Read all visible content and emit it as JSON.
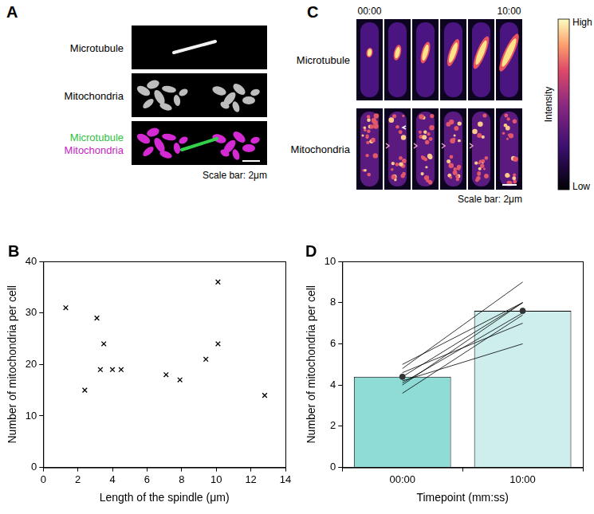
{
  "panels": {
    "A": {
      "label": "A",
      "rows": [
        {
          "labels": [
            "Microtubule"
          ]
        },
        {
          "labels": [
            "Mitochondria"
          ]
        },
        {
          "labels": [
            "Microtubule",
            "Mitochondria"
          ]
        }
      ],
      "scale_bar": "Scale bar: 2μm"
    },
    "C": {
      "label": "C",
      "timepoints": [
        "00:00",
        "10:00"
      ],
      "rows": [
        "Microtubule",
        "Mitochondria"
      ],
      "colorbar": {
        "title": "Intensity",
        "high": "High",
        "low": "Low"
      },
      "scale_bar": "Scale bar: 2μm"
    }
  },
  "chart_data": [
    {
      "panel": "B",
      "type": "scatter",
      "x": [
        1.3,
        2.4,
        3.1,
        3.3,
        3.5,
        4.0,
        4.5,
        7.1,
        7.9,
        9.4,
        10.1,
        10.1,
        12.8
      ],
      "values": [
        31,
        15,
        29,
        19,
        24,
        19,
        19,
        18,
        17,
        21,
        36,
        24,
        14
      ],
      "marker": "x",
      "color": "#000000",
      "xlabel": "Length of the spindle (μm)",
      "ylabel": "Number of mitochondria per cell",
      "xlim": [
        0,
        14
      ],
      "xticks": [
        0,
        2,
        4,
        6,
        8,
        10,
        12,
        14
      ],
      "ylim": [
        0,
        40
      ],
      "yticks": [
        0,
        10,
        20,
        30,
        40
      ],
      "grid": false
    },
    {
      "panel": "D",
      "type": "bar",
      "categories": [
        "00:00",
        "10:00"
      ],
      "values": [
        4.4,
        7.6
      ],
      "colors": [
        "#8fdcd6",
        "#cdeeec"
      ],
      "marker": "circle",
      "series": [
        {
          "type": "line",
          "color": "#000000",
          "values": [
            5.0,
            8.0
          ]
        },
        {
          "type": "line",
          "color": "#000000",
          "values": [
            4.8,
            9.0
          ]
        },
        {
          "type": "line",
          "color": "#000000",
          "values": [
            4.6,
            7.0
          ]
        },
        {
          "type": "line",
          "color": "#000000",
          "values": [
            4.4,
            8.0
          ]
        },
        {
          "type": "line",
          "color": "#000000",
          "values": [
            4.2,
            6.0
          ]
        },
        {
          "type": "line",
          "color": "#000000",
          "values": [
            4.1,
            7.5
          ]
        },
        {
          "type": "line",
          "color": "#000000",
          "values": [
            4.0,
            8.0
          ]
        },
        {
          "type": "line",
          "color": "#000000",
          "values": [
            3.6,
            7.4
          ]
        }
      ],
      "xlabel": "Timepoint (mm:ss)",
      "ylabel": "Number of mitochondria per cell",
      "ylim": [
        0,
        10
      ],
      "yticks": [
        0,
        2,
        4,
        6,
        8,
        10
      ],
      "grid": false
    }
  ]
}
